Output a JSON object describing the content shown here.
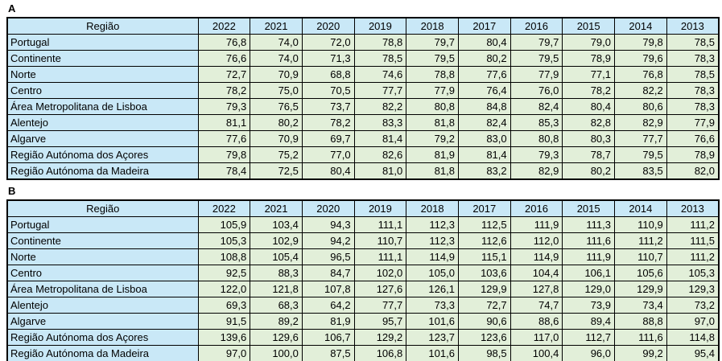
{
  "colors": {
    "header_fill": "#C9E8F7",
    "region_fill": "#C9E8F7",
    "value_fill": "#E2EFD9",
    "border": "#000000",
    "text": "#000000",
    "background": "#FFFFFF"
  },
  "chart_data": [
    {
      "type": "table",
      "label": "A",
      "region_header": "Região",
      "years": [
        "2022",
        "2021",
        "2020",
        "2019",
        "2018",
        "2017",
        "2016",
        "2015",
        "2014",
        "2013"
      ],
      "rows": [
        {
          "region": "Portugal",
          "values": [
            "76,8",
            "74,0",
            "72,0",
            "78,8",
            "79,7",
            "80,4",
            "79,7",
            "79,0",
            "79,8",
            "78,5"
          ]
        },
        {
          "region": "Continente",
          "values": [
            "76,6",
            "74,0",
            "71,3",
            "78,5",
            "79,5",
            "80,2",
            "79,5",
            "78,9",
            "79,6",
            "78,3"
          ]
        },
        {
          "region": "Norte",
          "values": [
            "72,7",
            "70,9",
            "68,8",
            "74,6",
            "78,8",
            "77,6",
            "77,9",
            "77,1",
            "76,8",
            "78,5"
          ]
        },
        {
          "region": "Centro",
          "values": [
            "78,2",
            "75,0",
            "70,5",
            "77,7",
            "77,9",
            "76,4",
            "76,0",
            "78,2",
            "82,2",
            "78,3"
          ]
        },
        {
          "region": "Área Metropolitana de Lisboa",
          "values": [
            "79,3",
            "76,5",
            "73,7",
            "82,2",
            "80,8",
            "84,8",
            "82,4",
            "80,4",
            "80,6",
            "78,3"
          ]
        },
        {
          "region": "Alentejo",
          "values": [
            "81,1",
            "80,2",
            "78,2",
            "83,3",
            "81,8",
            "82,4",
            "85,3",
            "82,8",
            "82,9",
            "77,9"
          ]
        },
        {
          "region": "Algarve",
          "values": [
            "77,6",
            "70,9",
            "69,7",
            "81,4",
            "79,2",
            "83,0",
            "80,8",
            "80,3",
            "77,7",
            "76,6"
          ]
        },
        {
          "region": "Região Autónoma dos Açores",
          "values": [
            "79,8",
            "75,2",
            "77,0",
            "82,6",
            "81,9",
            "81,4",
            "79,3",
            "78,7",
            "79,5",
            "78,9"
          ]
        },
        {
          "region": "Região Autónoma da Madeira",
          "values": [
            "78,4",
            "72,5",
            "80,4",
            "81,0",
            "81,8",
            "83,2",
            "82,9",
            "80,2",
            "83,5",
            "82,0"
          ]
        }
      ]
    },
    {
      "type": "table",
      "label": "B",
      "region_header": "Região",
      "years": [
        "2022",
        "2021",
        "2020",
        "2019",
        "2018",
        "2017",
        "2016",
        "2015",
        "2014",
        "2013"
      ],
      "rows": [
        {
          "region": "Portugal",
          "values": [
            "105,9",
            "103,4",
            "94,3",
            "111,1",
            "112,3",
            "112,5",
            "111,9",
            "111,3",
            "110,9",
            "111,2"
          ]
        },
        {
          "region": "Continente",
          "values": [
            "105,3",
            "102,9",
            "94,2",
            "110,7",
            "112,3",
            "112,6",
            "112,0",
            "111,6",
            "111,2",
            "111,5"
          ]
        },
        {
          "region": "Norte",
          "values": [
            "108,8",
            "105,4",
            "96,5",
            "111,1",
            "114,9",
            "115,1",
            "114,9",
            "111,9",
            "110,7",
            "111,2"
          ]
        },
        {
          "region": "Centro",
          "values": [
            "92,5",
            "88,3",
            "84,7",
            "102,0",
            "105,0",
            "103,6",
            "104,4",
            "106,1",
            "105,6",
            "105,3"
          ]
        },
        {
          "region": "Área Metropolitana de Lisboa",
          "values": [
            "122,0",
            "121,8",
            "107,8",
            "127,6",
            "126,1",
            "129,9",
            "127,8",
            "129,0",
            "129,9",
            "129,3"
          ]
        },
        {
          "region": "Alentejo",
          "values": [
            "69,3",
            "68,3",
            "64,2",
            "77,7",
            "73,3",
            "72,7",
            "74,7",
            "73,9",
            "73,4",
            "73,2"
          ]
        },
        {
          "region": "Algarve",
          "values": [
            "91,5",
            "89,2",
            "81,9",
            "95,7",
            "101,6",
            "90,6",
            "88,6",
            "89,4",
            "88,8",
            "97,0"
          ]
        },
        {
          "region": "Região Autónoma dos Açores",
          "values": [
            "139,6",
            "129,6",
            "106,7",
            "129,2",
            "123,7",
            "123,6",
            "117,0",
            "112,7",
            "111,6",
            "114,8"
          ]
        },
        {
          "region": "Região Autónoma da Madeira",
          "values": [
            "97,0",
            "100,0",
            "87,5",
            "106,8",
            "101,6",
            "98,5",
            "100,4",
            "96,0",
            "99,2",
            "95,4"
          ]
        }
      ]
    }
  ]
}
